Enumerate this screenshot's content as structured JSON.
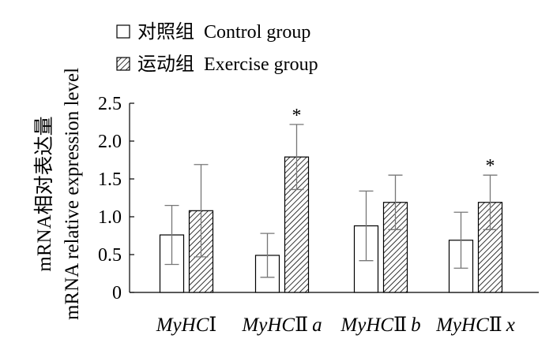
{
  "chart_data": {
    "type": "bar",
    "title": "",
    "xlabel": "",
    "ylabel_line1": "mRNA相对表达量",
    "ylabel_line2": "mRNA relative expression level",
    "ylim": [
      0,
      2.5
    ],
    "yticks": [
      "0",
      "0.5",
      "1.0",
      "1.5",
      "2.0",
      "2.5"
    ],
    "ytick_values": [
      0,
      0.5,
      1.0,
      1.5,
      2.0,
      2.5
    ],
    "grid": false,
    "legend_position": "top-left",
    "categories": [
      {
        "prefix": "MyHC",
        "roman": "Ⅰ",
        "suffix": ""
      },
      {
        "prefix": "MyHC",
        "roman": "Ⅱ",
        "suffix": "a"
      },
      {
        "prefix": "MyHC",
        "roman": "Ⅱ",
        "suffix": "b"
      },
      {
        "prefix": "MyHC",
        "roman": "Ⅱ",
        "suffix": "x"
      }
    ],
    "series": [
      {
        "name": "对照组  Control group",
        "fill": "open",
        "values": [
          0.76,
          0.49,
          0.88,
          0.69
        ],
        "errors": [
          0.39,
          0.29,
          0.46,
          0.37
        ],
        "significance": [
          "",
          "",
          "",
          ""
        ]
      },
      {
        "name": "运动组  Exercise group",
        "fill": "hatched",
        "values": [
          1.08,
          1.79,
          1.19,
          1.19
        ],
        "errors": [
          0.61,
          0.43,
          0.36,
          0.36
        ],
        "significance": [
          "",
          "*",
          "",
          "*"
        ]
      }
    ],
    "colors": {
      "bar_stroke": "#000000",
      "bar_fill_open": "#ffffff",
      "hatch": "#000000",
      "error_bar": "#777777"
    }
  }
}
